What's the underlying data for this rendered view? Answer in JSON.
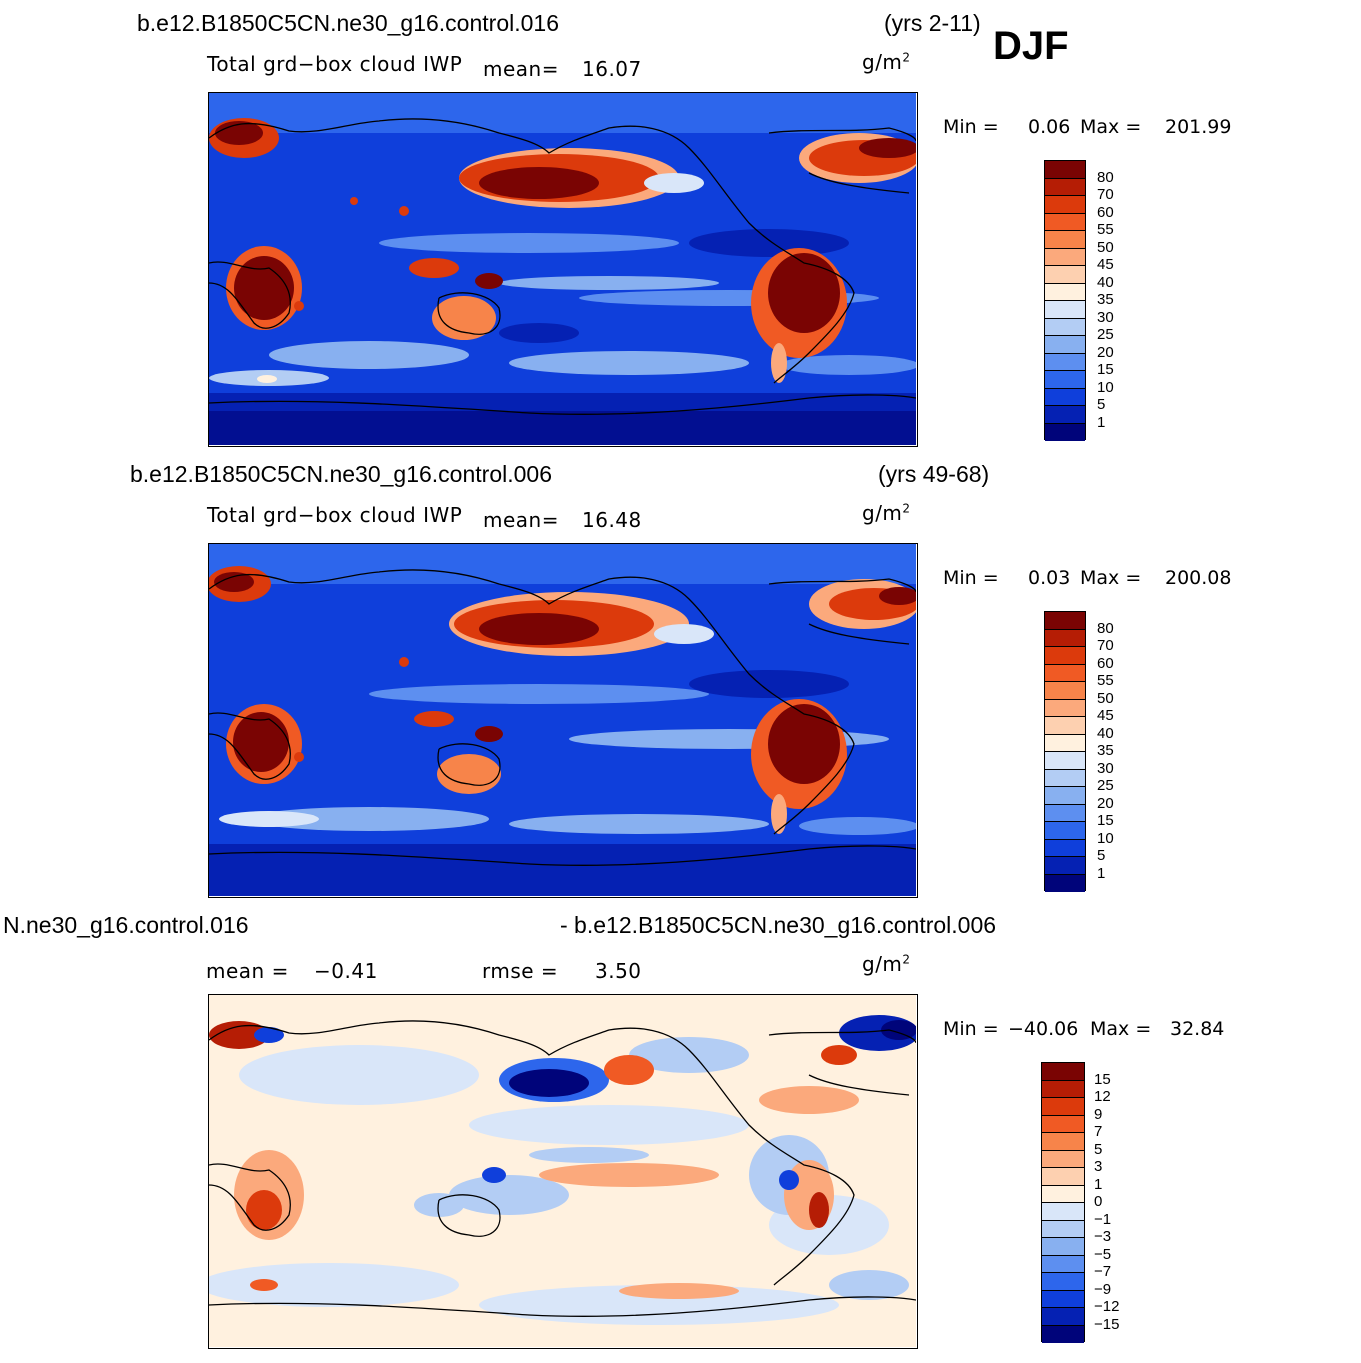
{
  "season": "DJF",
  "units": "g/m",
  "units_exp": "2",
  "panels": [
    {
      "case": "b.e12.B1850C5CN.ne30_g16.control.016",
      "years": "(yrs 2-11)",
      "variable": "Total grd−box cloud IWP",
      "mean_label": "mean=",
      "mean_value": "16.07",
      "min_label": "Min =",
      "min_value": "0.06",
      "max_label": "Max =",
      "max_value": "201.99",
      "colorbar": {
        "labels": [
          "80",
          "70",
          "60",
          "55",
          "50",
          "45",
          "40",
          "35",
          "30",
          "25",
          "20",
          "15",
          "10",
          "5",
          "1"
        ],
        "colors": [
          "#7a0403",
          "#b51d05",
          "#dc3a0c",
          "#f05a24",
          "#f7844a",
          "#fba97c",
          "#fdd0b0",
          "#fff1df",
          "#d9e6f9",
          "#b3cdf4",
          "#88b0f0",
          "#5d8ff0",
          "#2d66ec",
          "#0f3fdb",
          "#0521b3",
          "#00047a"
        ]
      }
    },
    {
      "case": "b.e12.B1850C5CN.ne30_g16.control.006",
      "years": "(yrs 49-68)",
      "variable": "Total grd−box cloud IWP",
      "mean_label": "mean=",
      "mean_value": "16.48",
      "min_label": "Min =",
      "min_value": "0.03",
      "max_label": "Max =",
      "max_value": "200.08",
      "colorbar": {
        "labels": [
          "80",
          "70",
          "60",
          "55",
          "50",
          "45",
          "40",
          "35",
          "30",
          "25",
          "20",
          "15",
          "10",
          "5",
          "1"
        ],
        "colors": [
          "#7a0403",
          "#b51d05",
          "#dc3a0c",
          "#f05a24",
          "#f7844a",
          "#fba97c",
          "#fdd0b0",
          "#fff1df",
          "#d9e6f9",
          "#b3cdf4",
          "#88b0f0",
          "#5d8ff0",
          "#2d66ec",
          "#0f3fdb",
          "#0521b3",
          "#00047a"
        ]
      }
    },
    {
      "case_left": "N.ne30_g16.control.016",
      "case_right": "- b.e12.B1850C5CN.ne30_g16.control.006",
      "mean_label": "mean =",
      "mean_value": "−0.41",
      "rmse_label": "rmse =",
      "rmse_value": "3.50",
      "min_label": "Min =",
      "min_value": "−40.06",
      "max_label": "Max =",
      "max_value": "32.84",
      "colorbar": {
        "labels": [
          "15",
          "12",
          "9",
          "7",
          "5",
          "3",
          "1",
          "0",
          "−1",
          "−3",
          "−5",
          "−7",
          "−9",
          "−12",
          "−15"
        ],
        "colors": [
          "#7a0403",
          "#b51d05",
          "#dc3a0c",
          "#f05a24",
          "#f7844a",
          "#fba97c",
          "#fdd0b0",
          "#fff1df",
          "#d9e6f9",
          "#b3cdf4",
          "#88b0f0",
          "#5d8ff0",
          "#2d66ec",
          "#0f3fdb",
          "#0521b3",
          "#00047a"
        ]
      }
    }
  ]
}
